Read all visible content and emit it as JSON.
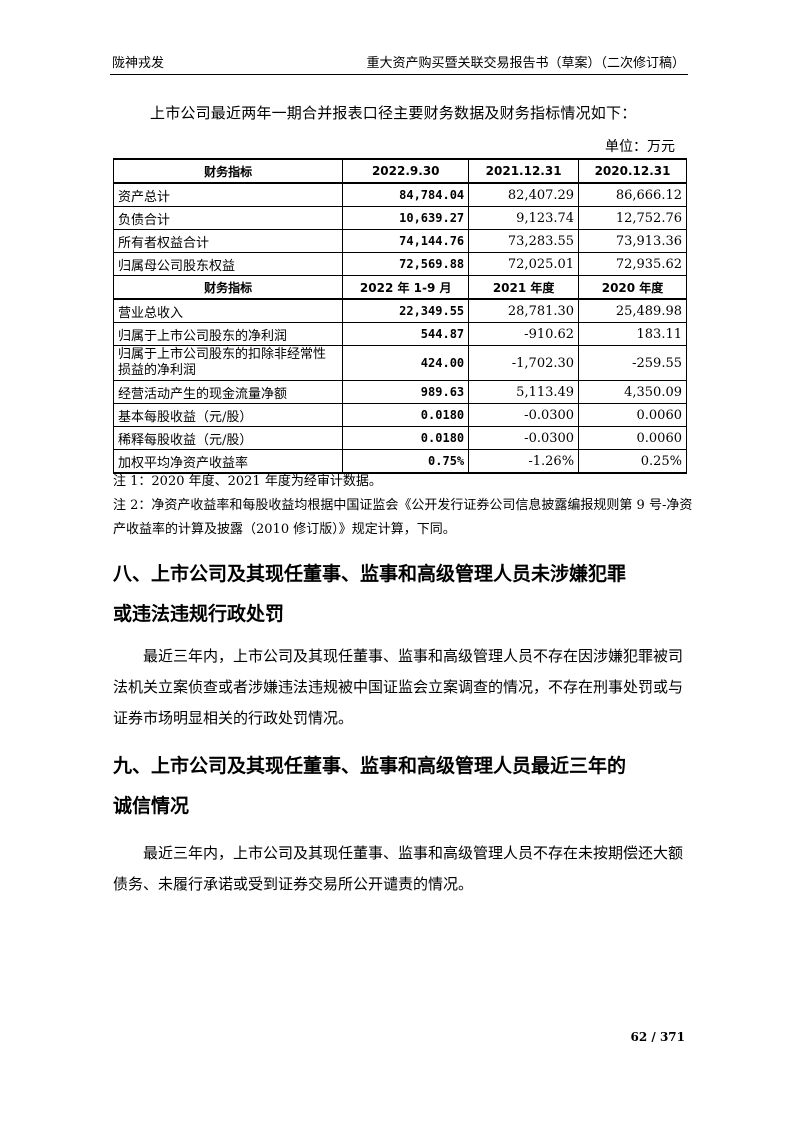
{
  "header": {
    "left": "陇神戎发",
    "right": "重大资产购买暨关联交易报告书（草案）（二次修订稿）"
  },
  "intro": "上市公司最近两年一期合并报表口径主要财务数据及财务指标情况如下：",
  "unit": "单位：万元",
  "table": {
    "header1": [
      "财务指标",
      "2022.9.30",
      "2021.12.31",
      "2020.12.31"
    ],
    "rows1": [
      [
        "资产总计",
        "84,784.04",
        "82,407.29",
        "86,666.12"
      ],
      [
        "负债合计",
        "10,639.27",
        "9,123.74",
        "12,752.76"
      ],
      [
        "所有者权益合计",
        "74,144.76",
        "73,283.55",
        "73,913.36"
      ],
      [
        "归属母公司股东权益",
        "72,569.88",
        "72,025.01",
        "72,935.62"
      ]
    ],
    "header2": [
      "财务指标",
      "2022 年 1-9 月",
      "2021 年度",
      "2020 年度"
    ],
    "rows2": [
      [
        "营业总收入",
        "22,349.55",
        "28,781.30",
        "25,489.98"
      ],
      [
        "归属于上市公司股东的净利润",
        "544.87",
        "-910.62",
        "183.11"
      ],
      [
        "归属于上市公司股东的扣除非经常性损益的净利润",
        "424.00",
        "-1,702.30",
        "-259.55"
      ],
      [
        "经营活动产生的现金流量净额",
        "989.63",
        "5,113.49",
        "4,350.09"
      ],
      [
        "基本每股收益（元/股）",
        "0.0180",
        "-0.0300",
        "0.0060"
      ],
      [
        "稀释每股收益（元/股）",
        "0.0180",
        "-0.0300",
        "0.0060"
      ],
      [
        "加权平均净资产收益率",
        "0.75%",
        "-1.26%",
        "0.25%"
      ]
    ]
  },
  "notes": [
    "注 1：2020 年度、2021 年度为经审计数据。",
    "注 2：净资产收益率和每股收益均根据中国证监会《公开发行证券公司信息披露编报规则第 9 号-净资产收益率的计算及披露（2010 修订版）》规定计算，下同。"
  ],
  "sections": [
    {
      "title_line1": "八、上市公司及其现任董事、监事和高级管理人员未涉嫌犯罪",
      "title_line2": "或违法违规行政处罚",
      "body": "最近三年内，上市公司及其现任董事、监事和高级管理人员不存在因涉嫌犯罪被司法机关立案侦查或者涉嫌违法违规被中国证监会立案调查的情况，不存在刑事处罚或与证券市场明显相关的行政处罚情况。"
    },
    {
      "title_line1": "九、上市公司及其现任董事、监事和高级管理人员最近三年的",
      "title_line2": "诚信情况",
      "body": "最近三年内，上市公司及其现任董事、监事和高级管理人员不存在未按期偿还大额债务、未履行承诺或受到证券交易所公开谴责的情况。"
    }
  ],
  "page_number": "62 / 371"
}
